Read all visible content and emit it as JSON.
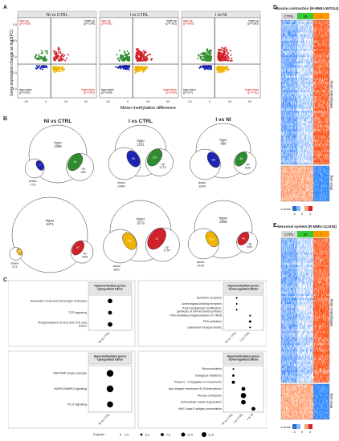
{
  "panels": {
    "A": "A",
    "B": "B",
    "C": "C",
    "D": "D",
    "E": "E"
  },
  "panelA": {
    "ylabel": "Gene expression change as log2(FC)",
    "xlabel": "Mean methylation difference",
    "colors": {
      "green": "#2e8b2e",
      "red": "#d0202a",
      "blue": "#1c24b0",
      "orange": "#f0b400"
    },
    "xticks": [
      "-25",
      "0",
      "25",
      "50"
    ],
    "yticks": [
      "5.0",
      "2.5",
      "0.0",
      "-2.5",
      "-5.0"
    ],
    "facets": [
      {
        "title": "NI vs CTRL",
        "tl": "hypo-up\n(p=0.063)",
        "tr": "hyper-up\n(p=0.145)",
        "bl": "hypo-down\n(p=0.002)",
        "br": "hyper-down\n(p=0.431)"
      },
      {
        "title": "I vs CTRL",
        "tl": "hypo-up\n(p=0.081)",
        "tr": "hyper-up\n(p=0.411)",
        "bl": "hypo-down\n(p=0.006)",
        "br": "hyper-down\n(p=0.003)"
      },
      {
        "title": "I vs NI",
        "tl": "hypo-up\n(p=0.001)",
        "tr": "hyper-up\n(p=0.061)",
        "bl": "hypo-down\n(p=0.07)",
        "br": "hyper-down\n(p=0.011)"
      }
    ]
  },
  "panelB": {
    "row1": [
      {
        "title": "NI vs CTRL",
        "big_label": "hypo",
        "big_value": "1365",
        "small_label": "down",
        "small_value": "173",
        "right_label": "up",
        "right_value": "962",
        "overlap1": "7",
        "overlap2": "51"
      },
      {
        "title": "I vs CTRL",
        "big_label": "hypo",
        "big_value": "1291",
        "small_label": "down",
        "small_value": "2448",
        "right_label": "up",
        "right_value": "1712",
        "overlap1": "59",
        "overlap2": "151"
      },
      {
        "title": "I vs NI",
        "big_label": "hypo",
        "big_value": "969",
        "small_label": "down",
        "small_value": "1820",
        "right_label": "up",
        "right_value": "690",
        "overlap1": "68",
        "overlap2": "46"
      }
    ],
    "row2": [
      {
        "big_label": "hyper",
        "big_value": "4471",
        "small_label": "down",
        "small_value": "173",
        "right_label": "up",
        "right_value": "598",
        "overlap1": "50",
        "overlap2": "57"
      },
      {
        "big_label": "hyper",
        "big_value": "3179",
        "small_label": "down",
        "small_value": "1857",
        "right_label": "up",
        "right_value": "1737",
        "overlap1": "730",
        "overlap2": "73"
      },
      {
        "big_label": "hyper",
        "big_value": "2465",
        "small_label": "down",
        "small_value": "1479",
        "right_label": "up",
        "right_value": "663",
        "overlap1": "512",
        "overlap2": "43"
      }
    ]
  },
  "panelC": {
    "boxes": [
      {
        "title": "Hypomethylated genes\nUpregulated DEGs",
        "terms": [
          "Generation of second messenger molecules",
          "TCR signaling",
          "Phosphorylation of CD3 and TCR zeta chains"
        ],
        "xcats": [
          "NI vs CTRL"
        ]
      },
      {
        "title": "Hypomethylated genes\nDownregulated DEGs",
        "terms": [
          "Serotonin receptors",
          "Amine ligand-binding receptors",
          "Post-translational modification: synthesis of GPI-anchored proteins",
          "PKA-mediated phosphorylation of CREB",
          "PKA activation",
          "Calmodulin induced events"
        ],
        "xcats": [
          "NI vs CTRL",
          "I vs CTRL"
        ]
      },
      {
        "title": "Hypermethylated genes\nUpregulated DEGs",
        "terms": [
          "RAF/MAP kinase cascade",
          "MAPK1/MAPK3 signaling",
          "FLT3 Signaling"
        ],
        "xcats": [
          "NI vs CTRL"
        ]
      },
      {
        "title": "Hypermethylated genes\nDownregulated DEGs",
        "terms": [
          "Glucuronidation",
          "Biological oxidations",
          "Phase II - Conjugation of compounds",
          "Non-integrin membrane-ECM interactions",
          "Muscle contraction",
          "Extracellular matrix organization",
          "MHC class II antigen presentation"
        ],
        "xcats": [
          "NI vs CTRL",
          "I vs CTRL",
          "I vs NI"
        ]
      }
    ],
    "legend_title": "N genes",
    "legend_values": [
      "2.5",
      "5.0",
      "7.5",
      "10.0",
      "12.5"
    ]
  },
  "panelD": {
    "title": "Muscle contraction (R-MMU-397014)",
    "groups": [
      "CTRL",
      "NI",
      "I"
    ],
    "row_labels": [
      "Methylation array",
      "RNA-seq"
    ],
    "zscore_label": "z-score",
    "zscore_ticks": [
      "-4",
      "0",
      "4"
    ]
  },
  "panelE": {
    "title": "Neuronal system (R-MMU-112316)",
    "groups": [
      "CTRL",
      "NI",
      "I"
    ],
    "row_labels": [
      "Methylation array",
      "RNA-seq"
    ],
    "zscore_label": "z-score",
    "zscore_ticks": [
      "-4",
      "0",
      "4"
    ]
  }
}
